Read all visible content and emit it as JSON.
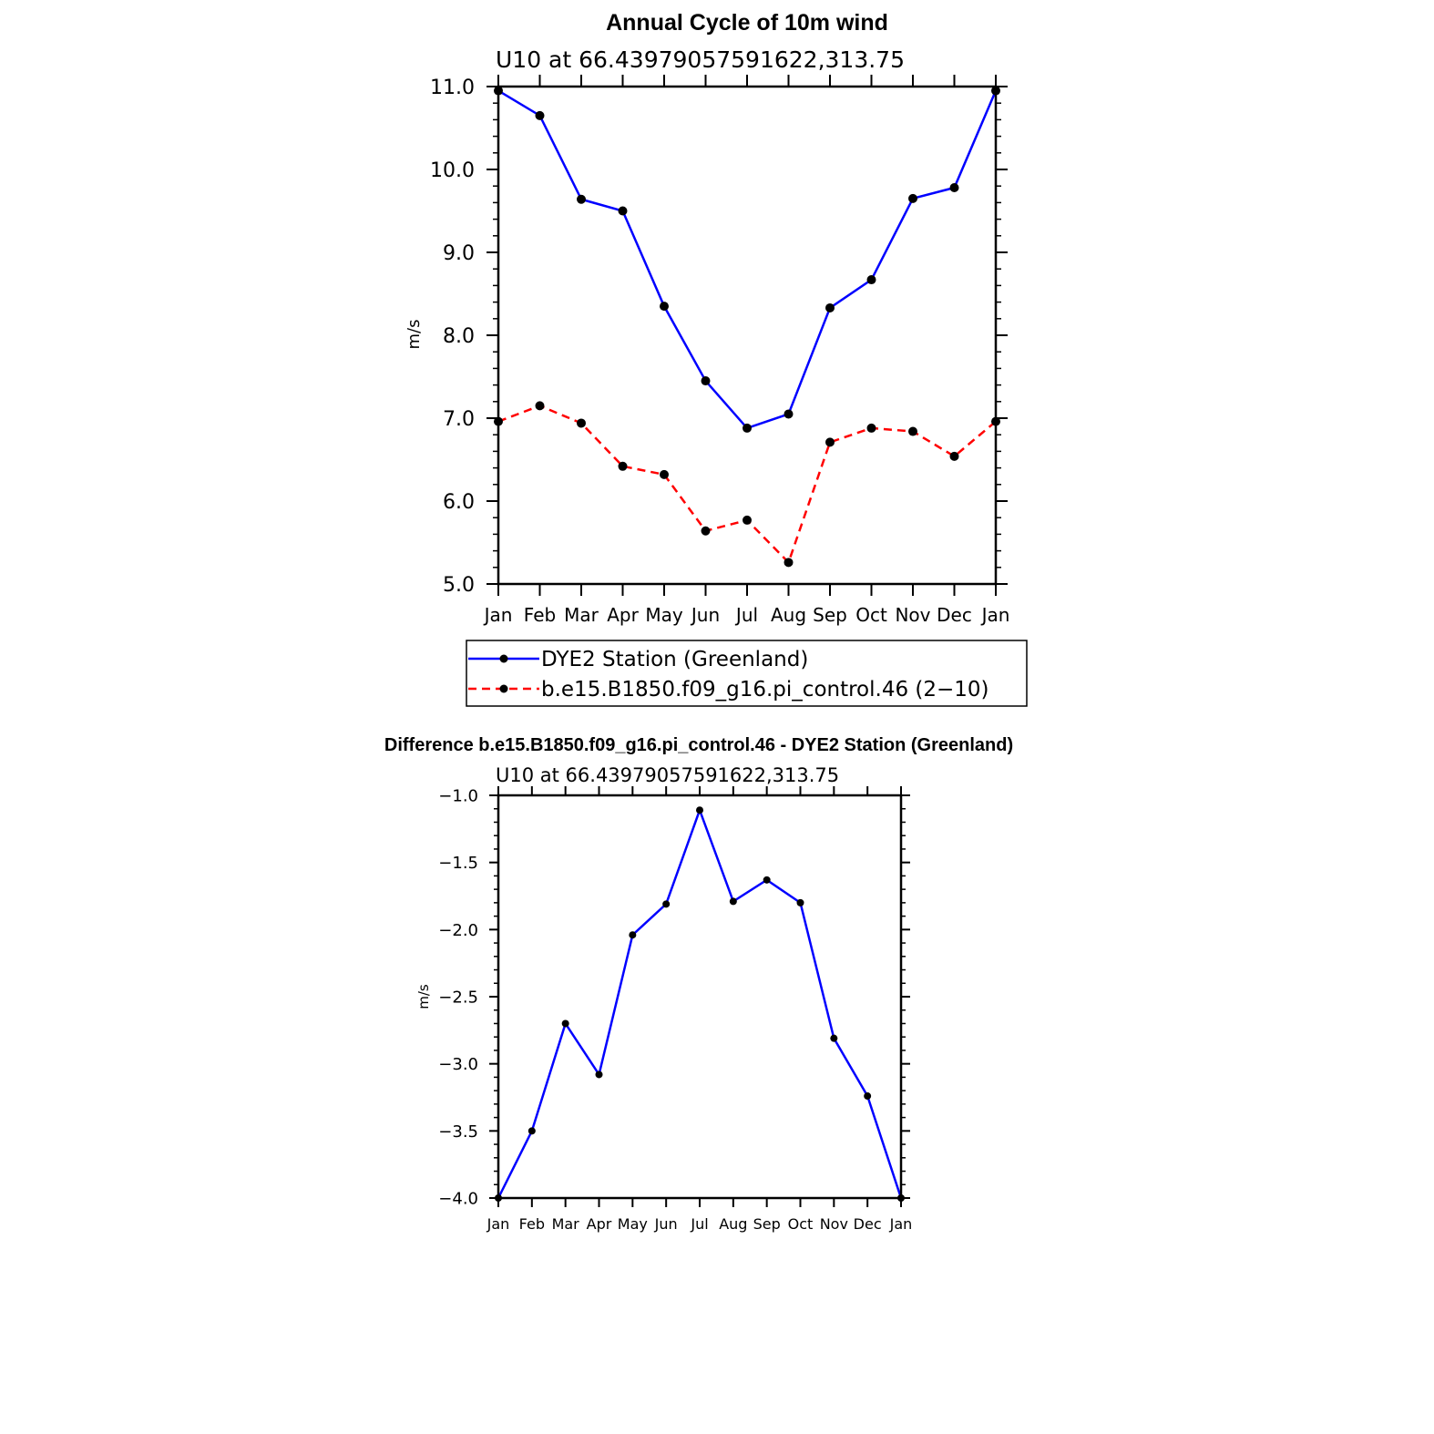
{
  "chart_data": [
    {
      "type": "line",
      "title": "Annual Cycle of 10m wind",
      "subtitle": "U10  at  66.43979057591622,313.75",
      "xlabel": "",
      "ylabel": "m/s",
      "categories": [
        "Jan",
        "Feb",
        "Mar",
        "Apr",
        "May",
        "Jun",
        "Jul",
        "Aug",
        "Sep",
        "Oct",
        "Nov",
        "Dec",
        "Jan"
      ],
      "ylim": [
        5.0,
        11.0
      ],
      "yticks": [
        "5.0",
        "6.0",
        "7.0",
        "8.0",
        "9.0",
        "10.0",
        "11.0"
      ],
      "yticks_values": [
        5.0,
        6.0,
        7.0,
        8.0,
        9.0,
        10.0,
        11.0
      ],
      "legend_position": "below",
      "series": [
        {
          "name": "DYE2 Station (Greenland)",
          "color": "#0000ff",
          "dash": "solid",
          "values": [
            10.95,
            10.65,
            9.64,
            9.5,
            8.35,
            7.45,
            6.88,
            7.05,
            8.33,
            8.67,
            9.65,
            9.78,
            10.95
          ]
        },
        {
          "name": "b.e15.B1850.f09_g16.pi_control.46 (2−10)",
          "color": "#ff0000",
          "dash": "dashed",
          "values": [
            6.96,
            7.15,
            6.94,
            6.42,
            6.32,
            5.64,
            5.77,
            5.26,
            6.71,
            6.88,
            6.84,
            6.54,
            6.96
          ]
        }
      ]
    },
    {
      "type": "line",
      "title": "Difference b.e15.B1850.f09_g16.pi_control.46 - DYE2 Station (Greenland)",
      "subtitle": "U10  at  66.43979057591622,313.75",
      "xlabel": "",
      "ylabel": "m/s",
      "categories": [
        "Jan",
        "Feb",
        "Mar",
        "Apr",
        "May",
        "Jun",
        "Jul",
        "Aug",
        "Sep",
        "Oct",
        "Nov",
        "Dec",
        "Jan"
      ],
      "ylim": [
        -4.0,
        -1.0
      ],
      "yticks": [
        "−4.0",
        "−3.5",
        "−3.0",
        "−2.5",
        "−2.0",
        "−1.5",
        "−1.0"
      ],
      "yticks_values": [
        -4.0,
        -3.5,
        -3.0,
        -2.5,
        -2.0,
        -1.5,
        -1.0
      ],
      "series": [
        {
          "name": "Difference",
          "color": "#0000ff",
          "dash": "solid",
          "values": [
            -4.0,
            -3.5,
            -2.7,
            -3.08,
            -2.04,
            -1.81,
            -1.11,
            -1.79,
            -1.63,
            -1.8,
            -2.81,
            -3.24,
            -4.0
          ]
        }
      ]
    }
  ]
}
